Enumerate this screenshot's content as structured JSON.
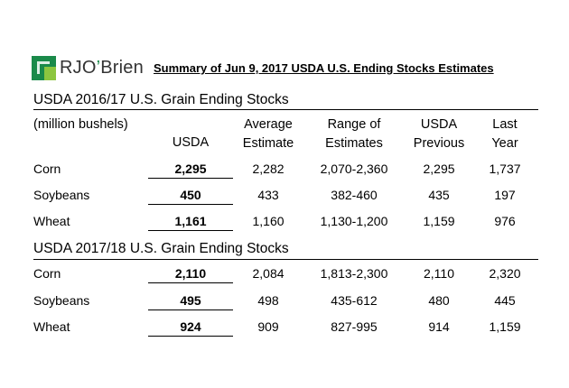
{
  "brand": {
    "logo_text_1": "RJO",
    "logo_text_2": "’",
    "logo_text_3": "Brien"
  },
  "summary_title": "Summary of Jun 9, 2017 USDA U.S. Ending Stocks Estimates",
  "section1": {
    "title": "USDA 2016/17 U.S. Grain Ending Stocks"
  },
  "section2": {
    "title": "USDA 2017/18 U.S. Grain Ending Stocks"
  },
  "units_label": "(million bushels)",
  "columns": {
    "usda": "USDA",
    "avg_1": "Average",
    "avg_2": "Estimate",
    "range_1": "Range of",
    "range_2": "Estimates",
    "prev_1": "USDA",
    "prev_2": "Previous",
    "last_1": "Last",
    "last_2": "Year"
  },
  "rows_1617": [
    {
      "commodity": "Corn",
      "usda": "2,295",
      "avg": "2,282",
      "range": "2,070-2,360",
      "previous": "2,295",
      "last_year": "1,737"
    },
    {
      "commodity": "Soybeans",
      "usda": "450",
      "avg": "433",
      "range": "382-460",
      "previous": "435",
      "last_year": "197"
    },
    {
      "commodity": "Wheat",
      "usda": "1,161",
      "avg": "1,160",
      "range": "1,130-1,200",
      "previous": "1,159",
      "last_year": "976"
    }
  ],
  "rows_1718": [
    {
      "commodity": "Corn",
      "usda": "2,110",
      "avg": "2,084",
      "range": "1,813-2,300",
      "previous": "2,110",
      "last_year": "2,320"
    },
    {
      "commodity": "Soybeans",
      "usda": "495",
      "avg": "498",
      "range": "435-612",
      "previous": "480",
      "last_year": "445"
    },
    {
      "commodity": "Wheat",
      "usda": "924",
      "avg": "909",
      "range": "827-995",
      "previous": "914",
      "last_year": "1,159"
    }
  ],
  "colors": {
    "logo_green": "#1a8a4a",
    "logo_light_green": "#8cc63f",
    "rule": "#000000"
  }
}
